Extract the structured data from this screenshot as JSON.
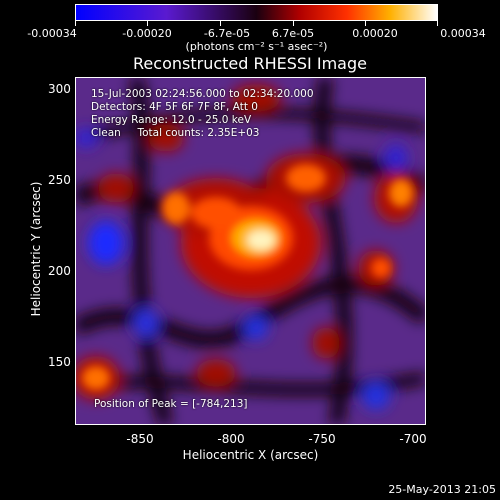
{
  "colorbar": {
    "ticks": [
      "-0.00034",
      "-0.00020",
      "-6.7e-05",
      "6.7e-05",
      "0.00020",
      "0.00034"
    ],
    "units": "(photons cm⁻² s⁻¹ asec⁻²)"
  },
  "title": "Reconstructed RHESSI Image",
  "overlay": {
    "line1": "15-Jul-2003 02:24:56.000 to 02:34:20.000",
    "line2": "Detectors: 4F 5F 6F 7F 8F, Att 0",
    "line3": "Energy Range: 12.0 - 25.0 keV",
    "line4": "Clean     Total counts: 2.35E+03",
    "peak": "Position of Peak = [-784,213]"
  },
  "axes": {
    "xlabel": "Heliocentric X (arcsec)",
    "ylabel": "Heliocentric Y (arcsec)",
    "xticks": [
      "-850",
      "-800",
      "-750",
      "-700"
    ],
    "yticks": [
      "300",
      "250",
      "200",
      "150"
    ]
  },
  "timestamp": "25-May-2013 21:05",
  "colors": {
    "background": "#000000",
    "text": "#ffffff"
  }
}
